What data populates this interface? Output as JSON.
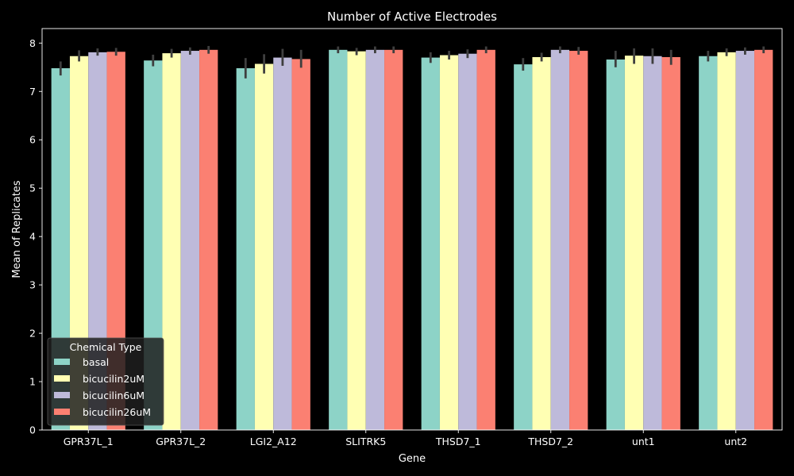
{
  "chart_data": {
    "type": "bar",
    "title": "Number of Active Electrodes",
    "xlabel": "Gene",
    "ylabel": "Mean of Replicates",
    "ylim": [
      0,
      8.3
    ],
    "yticks": [
      0,
      1,
      2,
      3,
      4,
      5,
      6,
      7,
      8
    ],
    "grid": false,
    "legend": {
      "title": "Chemical Type",
      "placement": "lower-left"
    },
    "categories": [
      "GPR37L_1",
      "GPR37L_2",
      "LGI2_A12",
      "SLITRK5",
      "THSD7_1",
      "THSD7_2",
      "unt1",
      "unt2"
    ],
    "series": [
      {
        "name": "basal",
        "color": "#8dd3c7",
        "values": [
          7.48,
          7.64,
          7.48,
          7.86,
          7.7,
          7.56,
          7.66,
          7.73
        ],
        "err_low": [
          7.33,
          7.52,
          7.27,
          7.79,
          7.59,
          7.43,
          7.5,
          7.62
        ],
        "err_high": [
          7.62,
          7.76,
          7.69,
          7.93,
          7.81,
          7.69,
          7.84,
          7.84
        ]
      },
      {
        "name": "bicucilin2uM",
        "color": "#ffffb3",
        "values": [
          7.73,
          7.79,
          7.57,
          7.83,
          7.75,
          7.71,
          7.74,
          7.81
        ],
        "err_low": [
          7.62,
          7.7,
          7.37,
          7.75,
          7.66,
          7.62,
          7.57,
          7.73
        ],
        "err_high": [
          7.85,
          7.88,
          7.77,
          7.9,
          7.84,
          7.8,
          7.89,
          7.89
        ]
      },
      {
        "name": "bicucilin6uM",
        "color": "#bebada",
        "values": [
          7.81,
          7.84,
          7.7,
          7.86,
          7.78,
          7.86,
          7.73,
          7.84
        ],
        "err_low": [
          7.74,
          7.76,
          7.53,
          7.79,
          7.69,
          7.79,
          7.57,
          7.76
        ],
        "err_high": [
          7.89,
          7.91,
          7.88,
          7.93,
          7.87,
          7.93,
          7.89,
          7.91
        ]
      },
      {
        "name": "bicucilin26uM",
        "color": "#fb8072",
        "values": [
          7.82,
          7.86,
          7.67,
          7.86,
          7.86,
          7.84,
          7.71,
          7.86
        ],
        "err_low": [
          7.74,
          7.78,
          7.49,
          7.79,
          7.79,
          7.76,
          7.55,
          7.79
        ],
        "err_high": [
          7.9,
          7.94,
          7.86,
          7.93,
          7.93,
          7.92,
          7.86,
          7.93
        ]
      }
    ]
  }
}
